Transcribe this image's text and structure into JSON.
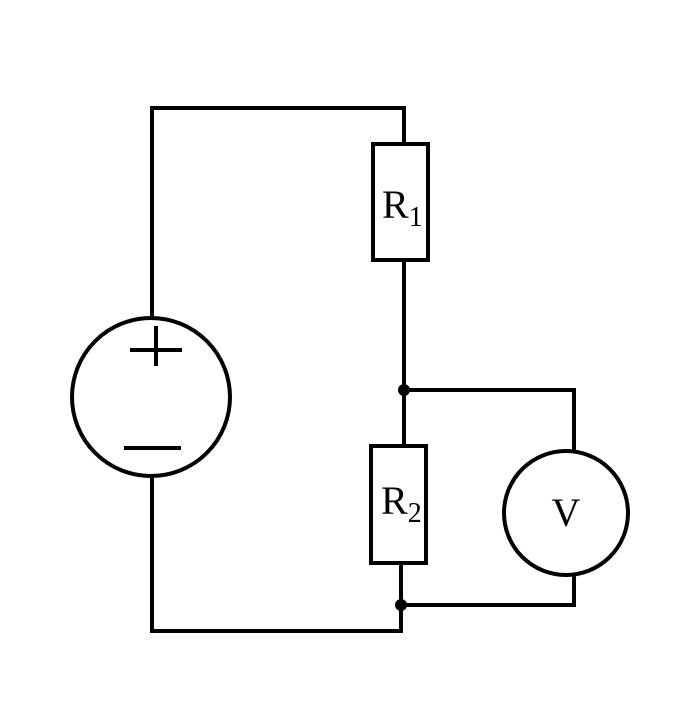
{
  "resistor_1": {
    "symbol": "R",
    "subscript": "1"
  },
  "resistor_2": {
    "symbol": "R",
    "subscript": "2"
  },
  "voltmeter": {
    "label": "V"
  },
  "source": {
    "positive": "+",
    "negative": "−"
  }
}
